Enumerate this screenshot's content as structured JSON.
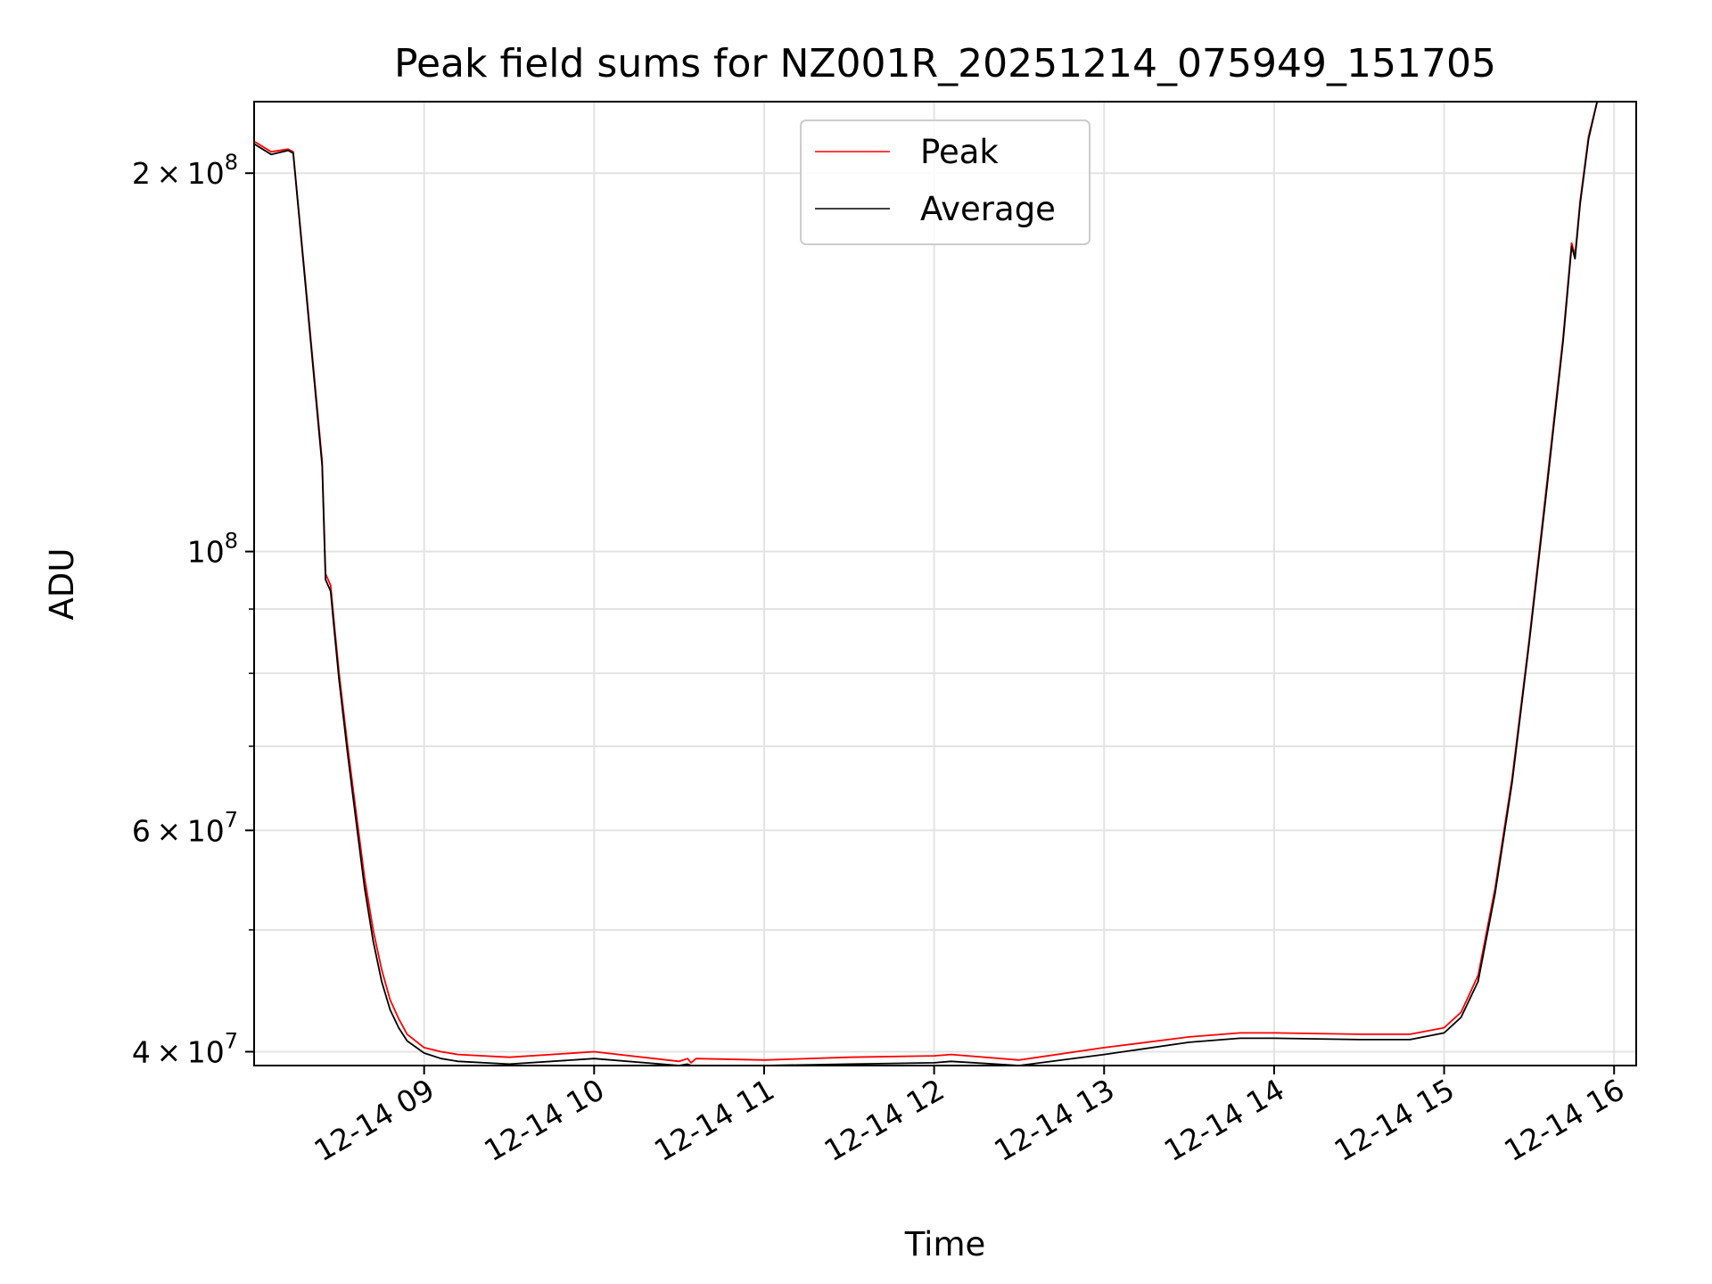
{
  "chart_data": {
    "type": "line",
    "title": "Peak field sums for NZ001R_20251214_075949_151705",
    "xlabel": "Time",
    "ylabel": "ADU",
    "x_unit": "hours (local time of day, 2025-12-14)",
    "xlim": [
      8.0,
      16.13
    ],
    "ylim": [
      39000000,
      228000000
    ],
    "y_scale": "log",
    "grid": true,
    "legend_position": "top-center",
    "x_ticks": [
      {
        "value": 9,
        "label": "12-14 09"
      },
      {
        "value": 10,
        "label": "12-14 10"
      },
      {
        "value": 11,
        "label": "12-14 11"
      },
      {
        "value": 12,
        "label": "12-14 12"
      },
      {
        "value": 13,
        "label": "12-14 13"
      },
      {
        "value": 14,
        "label": "12-14 14"
      },
      {
        "value": 15,
        "label": "12-14 15"
      },
      {
        "value": 16,
        "label": "12-14 16"
      }
    ],
    "y_major_ticks": [
      {
        "value": 40000000,
        "mantissa": "4",
        "exponent": "7"
      },
      {
        "value": 60000000,
        "mantissa": "6",
        "exponent": "7"
      },
      {
        "value": 100000000,
        "mantissa": "",
        "exponent": "8"
      },
      {
        "value": 200000000,
        "mantissa": "2",
        "exponent": "8"
      }
    ],
    "y_minor_ticks": [
      50000000,
      70000000,
      80000000,
      90000000
    ],
    "series": [
      {
        "name": "Peak",
        "color": "#ff0000",
        "x": [
          8.0,
          8.1,
          8.2,
          8.23,
          8.3,
          8.4,
          8.42,
          8.45,
          8.47,
          8.5,
          8.55,
          8.6,
          8.65,
          8.7,
          8.75,
          8.8,
          8.85,
          8.9,
          9.0,
          9.1,
          9.2,
          9.5,
          10.0,
          10.5,
          10.55,
          10.57,
          10.6,
          11.0,
          11.5,
          12.0,
          12.1,
          12.5,
          13.0,
          13.5,
          13.8,
          14.0,
          14.5,
          14.8,
          15.0,
          15.1,
          15.2,
          15.3,
          15.4,
          15.5,
          15.6,
          15.7,
          15.75,
          15.77,
          15.8,
          15.85,
          15.9,
          15.95,
          16.13
        ],
        "values": [
          212000000,
          208000000,
          209000000,
          208000000,
          165000000,
          118000000,
          96000000,
          94000000,
          88000000,
          80000000,
          70000000,
          62000000,
          55000000,
          50000000,
          46500000,
          44000000,
          42500000,
          41300000,
          40300000,
          40000000,
          39800000,
          39600000,
          40000000,
          39300000,
          39500000,
          39200000,
          39500000,
          39400000,
          39600000,
          39700000,
          39800000,
          39400000,
          40300000,
          41100000,
          41400000,
          41400000,
          41300000,
          41300000,
          41800000,
          43000000,
          46000000,
          54000000,
          66000000,
          85000000,
          112000000,
          148000000,
          176000000,
          172000000,
          190000000,
          214000000,
          228000000,
          228000000,
          228000000
        ]
      },
      {
        "name": "Average",
        "color": "#000000",
        "x": [
          8.0,
          8.1,
          8.2,
          8.23,
          8.3,
          8.4,
          8.42,
          8.45,
          8.47,
          8.5,
          8.55,
          8.6,
          8.65,
          8.7,
          8.75,
          8.8,
          8.85,
          8.9,
          9.0,
          9.1,
          9.2,
          9.5,
          10.0,
          10.5,
          10.55,
          10.57,
          10.6,
          11.0,
          11.5,
          12.0,
          12.1,
          12.5,
          13.0,
          13.5,
          13.8,
          14.0,
          14.5,
          14.8,
          15.0,
          15.1,
          15.2,
          15.3,
          15.4,
          15.5,
          15.6,
          15.7,
          15.75,
          15.77,
          15.8,
          15.85,
          15.9,
          15.95,
          16.13
        ],
        "values": [
          211000000,
          207000000,
          208500000,
          207500000,
          164000000,
          117000000,
          95000000,
          93000000,
          87000000,
          79000000,
          69000000,
          61000000,
          54000000,
          49000000,
          45500000,
          43200000,
          41800000,
          40800000,
          39900000,
          39500000,
          39300000,
          39100000,
          39500000,
          38900000,
          39100000,
          38800000,
          39000000,
          38900000,
          39100000,
          39200000,
          39300000,
          38900000,
          39800000,
          40700000,
          41000000,
          41000000,
          40900000,
          40900000,
          41400000,
          42600000,
          45500000,
          53500000,
          65500000,
          84500000,
          111000000,
          147000000,
          175000000,
          171000000,
          189000000,
          213000000,
          228000000,
          228000000,
          228000000
        ]
      }
    ]
  }
}
